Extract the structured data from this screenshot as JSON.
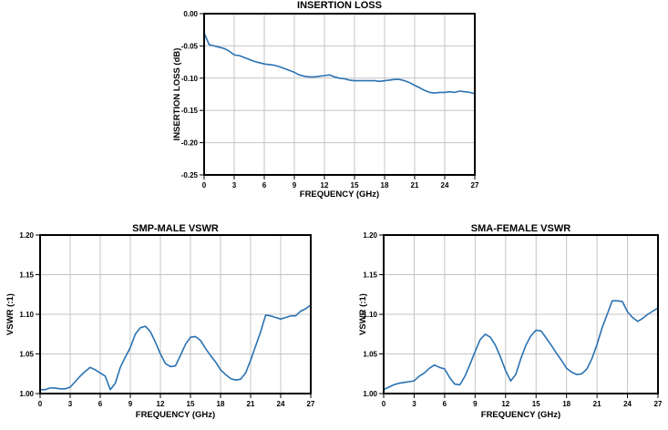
{
  "page": {
    "background": "#ffffff"
  },
  "colors": {
    "line": "#2A72B2",
    "grid": "#C4C4C4",
    "axis": "#000000",
    "text": "#000000"
  },
  "chart_data": [
    {
      "type": "line",
      "title": "INSERTION LOSS",
      "xlabel": "FREQUENCY (GHz)",
      "ylabel": "INSERTION LOSS (dB)",
      "xlim": [
        0,
        27
      ],
      "ylim": [
        -0.25,
        0
      ],
      "grid": true,
      "legend": "none",
      "xticks": [
        0,
        3,
        6,
        9,
        12,
        15,
        18,
        21,
        24,
        27
      ],
      "xtick_labels": [
        "0",
        "3",
        "6",
        "9",
        "12",
        "15",
        "18",
        "21",
        "24",
        "27"
      ],
      "yticks": [
        0,
        -0.05,
        -0.1,
        -0.15,
        -0.2,
        -0.25
      ],
      "ytick_labels": [
        "0.00",
        "-0.05",
        "-0.10",
        "-0.15",
        "-0.20",
        "-0.25"
      ],
      "series": [
        {
          "name": "insertion-loss",
          "x": [
            0,
            0.5,
            1,
            1.5,
            2,
            2.5,
            3,
            3.5,
            4,
            4.5,
            5,
            5.5,
            6,
            6.5,
            7,
            7.5,
            8,
            8.5,
            9,
            9.5,
            10,
            10.5,
            11,
            11.5,
            12,
            12.5,
            13,
            13.5,
            14,
            14.5,
            15,
            15.5,
            16,
            16.5,
            17,
            17.5,
            18,
            18.5,
            19,
            19.5,
            20,
            20.5,
            21,
            21.5,
            22,
            22.5,
            23,
            23.5,
            24,
            24.5,
            25,
            25.5,
            26,
            26.5,
            27
          ],
          "y": [
            -0.03,
            -0.048,
            -0.05,
            -0.052,
            -0.054,
            -0.058,
            -0.064,
            -0.065,
            -0.068,
            -0.071,
            -0.074,
            -0.076,
            -0.078,
            -0.079,
            -0.08,
            -0.082,
            -0.085,
            -0.088,
            -0.091,
            -0.095,
            -0.097,
            -0.098,
            -0.098,
            -0.097,
            -0.096,
            -0.095,
            -0.098,
            -0.1,
            -0.101,
            -0.103,
            -0.104,
            -0.104,
            -0.104,
            -0.104,
            -0.104,
            -0.105,
            -0.104,
            -0.103,
            -0.102,
            -0.102,
            -0.104,
            -0.107,
            -0.111,
            -0.115,
            -0.119,
            -0.122,
            -0.123,
            -0.122,
            -0.122,
            -0.121,
            -0.122,
            -0.12,
            -0.121,
            -0.122,
            -0.124
          ]
        }
      ]
    },
    {
      "type": "line",
      "title": "SMP-MALE VSWR",
      "xlabel": "FREQUENCY (GHz)",
      "ylabel": "VSWR (:1)",
      "xlim": [
        0,
        27
      ],
      "ylim": [
        1.0,
        1.2
      ],
      "grid": true,
      "legend": "none",
      "xticks": [
        0,
        3,
        6,
        9,
        12,
        15,
        18,
        21,
        24,
        27
      ],
      "xtick_labels": [
        "0",
        "3",
        "6",
        "9",
        "12",
        "15",
        "18",
        "21",
        "24",
        "27"
      ],
      "yticks": [
        1.0,
        1.05,
        1.1,
        1.15,
        1.2
      ],
      "ytick_labels": [
        "1.00",
        "1.05",
        "1.10",
        "1.15",
        "1.20"
      ],
      "series": [
        {
          "name": "smp-male-vswr",
          "x": [
            0,
            0.5,
            1,
            1.5,
            2,
            2.5,
            3,
            3.5,
            4,
            4.5,
            5,
            5.5,
            6,
            6.5,
            7,
            7.5,
            8,
            8.5,
            9,
            9.5,
            10,
            10.5,
            11,
            11.5,
            12,
            12.5,
            13,
            13.5,
            14,
            14.5,
            15,
            15.5,
            16,
            16.5,
            17,
            17.5,
            18,
            18.5,
            19,
            19.5,
            20,
            20.5,
            21,
            21.5,
            22,
            22.5,
            23,
            23.5,
            24,
            24.5,
            25,
            25.5,
            26,
            26.5,
            27
          ],
          "y": [
            1.005,
            1.005,
            1.007,
            1.007,
            1.006,
            1.006,
            1.008,
            1.015,
            1.022,
            1.028,
            1.033,
            1.03,
            1.026,
            1.022,
            1.005,
            1.013,
            1.033,
            1.046,
            1.058,
            1.075,
            1.083,
            1.085,
            1.078,
            1.065,
            1.05,
            1.038,
            1.034,
            1.035,
            1.048,
            1.062,
            1.071,
            1.072,
            1.067,
            1.057,
            1.048,
            1.04,
            1.03,
            1.024,
            1.019,
            1.017,
            1.018,
            1.026,
            1.042,
            1.06,
            1.078,
            1.099,
            1.098,
            1.096,
            1.094,
            1.096,
            1.098,
            1.098,
            1.104,
            1.107,
            1.112
          ]
        }
      ]
    },
    {
      "type": "line",
      "title": "SMA-FEMALE VSWR",
      "xlabel": "FREQUENCY (GHz)",
      "ylabel": "VSWR (:1)",
      "xlim": [
        0,
        27
      ],
      "ylim": [
        1.0,
        1.2
      ],
      "grid": true,
      "legend": "none",
      "xticks": [
        0,
        3,
        6,
        9,
        12,
        15,
        18,
        21,
        24,
        27
      ],
      "xtick_labels": [
        "0",
        "3",
        "6",
        "9",
        "12",
        "15",
        "18",
        "21",
        "24",
        "27"
      ],
      "yticks": [
        1.0,
        1.05,
        1.1,
        1.15,
        1.2
      ],
      "ytick_labels": [
        "1.00",
        "1.05",
        "1.10",
        "1.15",
        "1.20"
      ],
      "series": [
        {
          "name": "sma-female-vswr",
          "x": [
            0,
            0.5,
            1,
            1.5,
            2,
            2.5,
            3,
            3.5,
            4,
            4.5,
            5,
            5.5,
            6,
            6.5,
            7,
            7.5,
            8,
            8.5,
            9,
            9.5,
            10,
            10.5,
            11,
            11.5,
            12,
            12.5,
            13,
            13.5,
            14,
            14.5,
            15,
            15.5,
            16,
            16.5,
            17,
            17.5,
            18,
            18.5,
            19,
            19.5,
            20,
            20.5,
            21,
            21.5,
            22,
            22.5,
            23,
            23.5,
            24,
            24.5,
            25,
            25.5,
            26,
            26.5,
            27
          ],
          "y": [
            1.005,
            1.008,
            1.011,
            1.013,
            1.014,
            1.015,
            1.016,
            1.022,
            1.026,
            1.032,
            1.036,
            1.033,
            1.031,
            1.02,
            1.012,
            1.011,
            1.022,
            1.037,
            1.053,
            1.068,
            1.075,
            1.071,
            1.061,
            1.046,
            1.029,
            1.016,
            1.024,
            1.044,
            1.061,
            1.073,
            1.08,
            1.079,
            1.07,
            1.061,
            1.051,
            1.042,
            1.032,
            1.027,
            1.024,
            1.025,
            1.031,
            1.044,
            1.062,
            1.083,
            1.1,
            1.117,
            1.117,
            1.116,
            1.103,
            1.096,
            1.091,
            1.095,
            1.1,
            1.104,
            1.108
          ]
        }
      ]
    }
  ]
}
